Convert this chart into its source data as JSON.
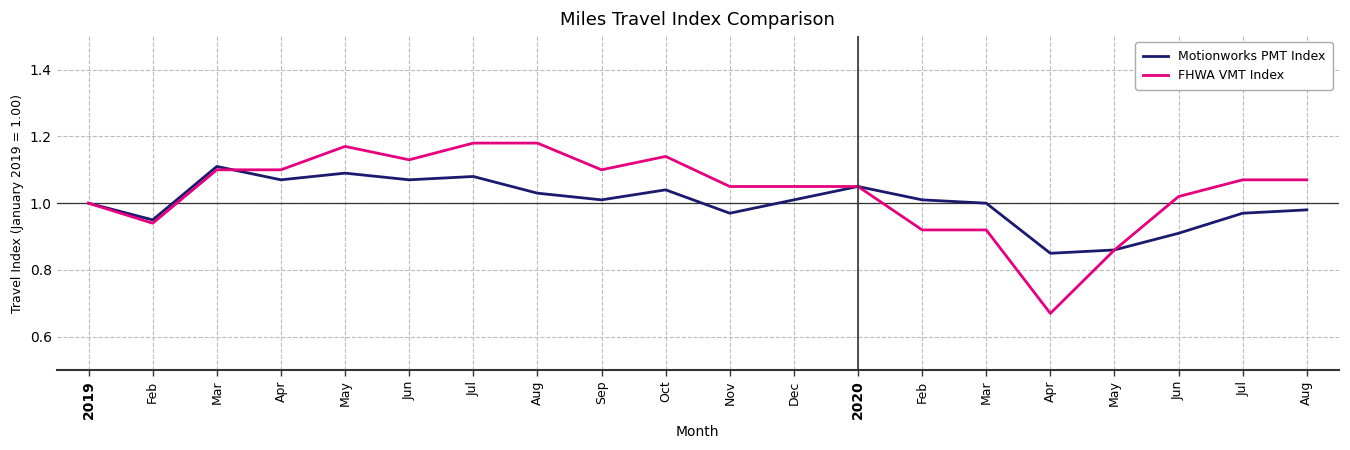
{
  "title": "Miles Travel Index Comparison",
  "ylabel": "Travel Index (January 2019 = 1.00)",
  "xlabel": "Month",
  "ylim": [
    0.5,
    1.5
  ],
  "yticks": [
    0.6,
    0.8,
    1.0,
    1.2,
    1.4
  ],
  "x_labels": [
    "2019",
    "Feb",
    "Mar",
    "Apr",
    "May",
    "Jun",
    "Jul",
    "Aug",
    "Sep",
    "Oct",
    "Nov",
    "Dec",
    "2020",
    "Feb",
    "Mar",
    "Apr",
    "May",
    "Jun",
    "Jul",
    "Aug"
  ],
  "pmt_values": [
    1.0,
    0.95,
    1.11,
    1.07,
    1.09,
    1.07,
    1.08,
    1.03,
    1.01,
    1.04,
    0.97,
    1.01,
    1.05,
    1.01,
    1.0,
    0.85,
    0.86,
    0.91,
    0.97,
    0.98
  ],
  "vmt_values": [
    1.0,
    0.94,
    1.1,
    1.1,
    1.17,
    1.13,
    1.18,
    1.18,
    1.1,
    1.14,
    1.05,
    1.05,
    1.05,
    0.92,
    0.92,
    0.67,
    0.86,
    1.02,
    1.07,
    1.07
  ],
  "pmt_color": "#1a1a6e",
  "vmt_color": "#e6007e",
  "pmt_label": "Motionworks PMT Index",
  "vmt_label": "FHWA VMT Index",
  "vline_x": 12,
  "plot_bg_color": "#ffffff",
  "fig_bg_color": "#ffffff",
  "grid_color": "#bbbbbb",
  "line_width": 2.0,
  "hline_color": "#333333",
  "vline_color": "#333333",
  "spine_color": "#333333"
}
